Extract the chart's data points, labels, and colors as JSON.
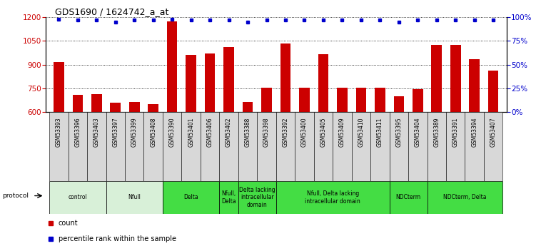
{
  "title": "GDS1690 / 1624742_a_at",
  "samples": [
    "GSM53393",
    "GSM53396",
    "GSM53403",
    "GSM53397",
    "GSM53399",
    "GSM53408",
    "GSM53390",
    "GSM53401",
    "GSM53406",
    "GSM53402",
    "GSM53388",
    "GSM53398",
    "GSM53392",
    "GSM53400",
    "GSM53405",
    "GSM53409",
    "GSM53410",
    "GSM53411",
    "GSM53395",
    "GSM53404",
    "GSM53389",
    "GSM53391",
    "GSM53394",
    "GSM53407"
  ],
  "bar_values": [
    915,
    710,
    715,
    660,
    665,
    650,
    1175,
    960,
    970,
    1010,
    665,
    755,
    1035,
    755,
    965,
    755,
    755,
    755,
    700,
    745,
    1025,
    1025,
    935,
    860
  ],
  "percentile_values": [
    98,
    97,
    97,
    95,
    97,
    97,
    98,
    97,
    97,
    97,
    95,
    97,
    97,
    97,
    97,
    97,
    97,
    97,
    95,
    97,
    97,
    97,
    97,
    97
  ],
  "ylim_left": [
    600,
    1200
  ],
  "ylim_right": [
    0,
    100
  ],
  "yticks_left": [
    600,
    750,
    900,
    1050,
    1200
  ],
  "yticks_right": [
    0,
    25,
    50,
    75,
    100
  ],
  "bar_color": "#cc0000",
  "dot_color": "#0000cc",
  "groups": [
    {
      "label": "control",
      "start": 0,
      "end": 2,
      "color": "#d8f0d8"
    },
    {
      "label": "Nfull",
      "start": 3,
      "end": 5,
      "color": "#d8f0d8"
    },
    {
      "label": "Delta",
      "start": 6,
      "end": 8,
      "color": "#44dd44"
    },
    {
      "label": "Nfull,\nDelta",
      "start": 9,
      "end": 9,
      "color": "#44dd44"
    },
    {
      "label": "Delta lacking\nintracellular\ndomain",
      "start": 10,
      "end": 11,
      "color": "#44dd44"
    },
    {
      "label": "Nfull, Delta lacking\nintracellular domain",
      "start": 12,
      "end": 17,
      "color": "#44dd44"
    },
    {
      "label": "NDCterm",
      "start": 18,
      "end": 19,
      "color": "#44dd44"
    },
    {
      "label": "NDCterm, Delta",
      "start": 20,
      "end": 23,
      "color": "#44dd44"
    }
  ],
  "legend_count_label": "count",
  "legend_pct_label": "percentile rank within the sample",
  "protocol_label": "protocol",
  "bar_color_red": "#cc0000",
  "dot_color_blue": "#0000cc"
}
